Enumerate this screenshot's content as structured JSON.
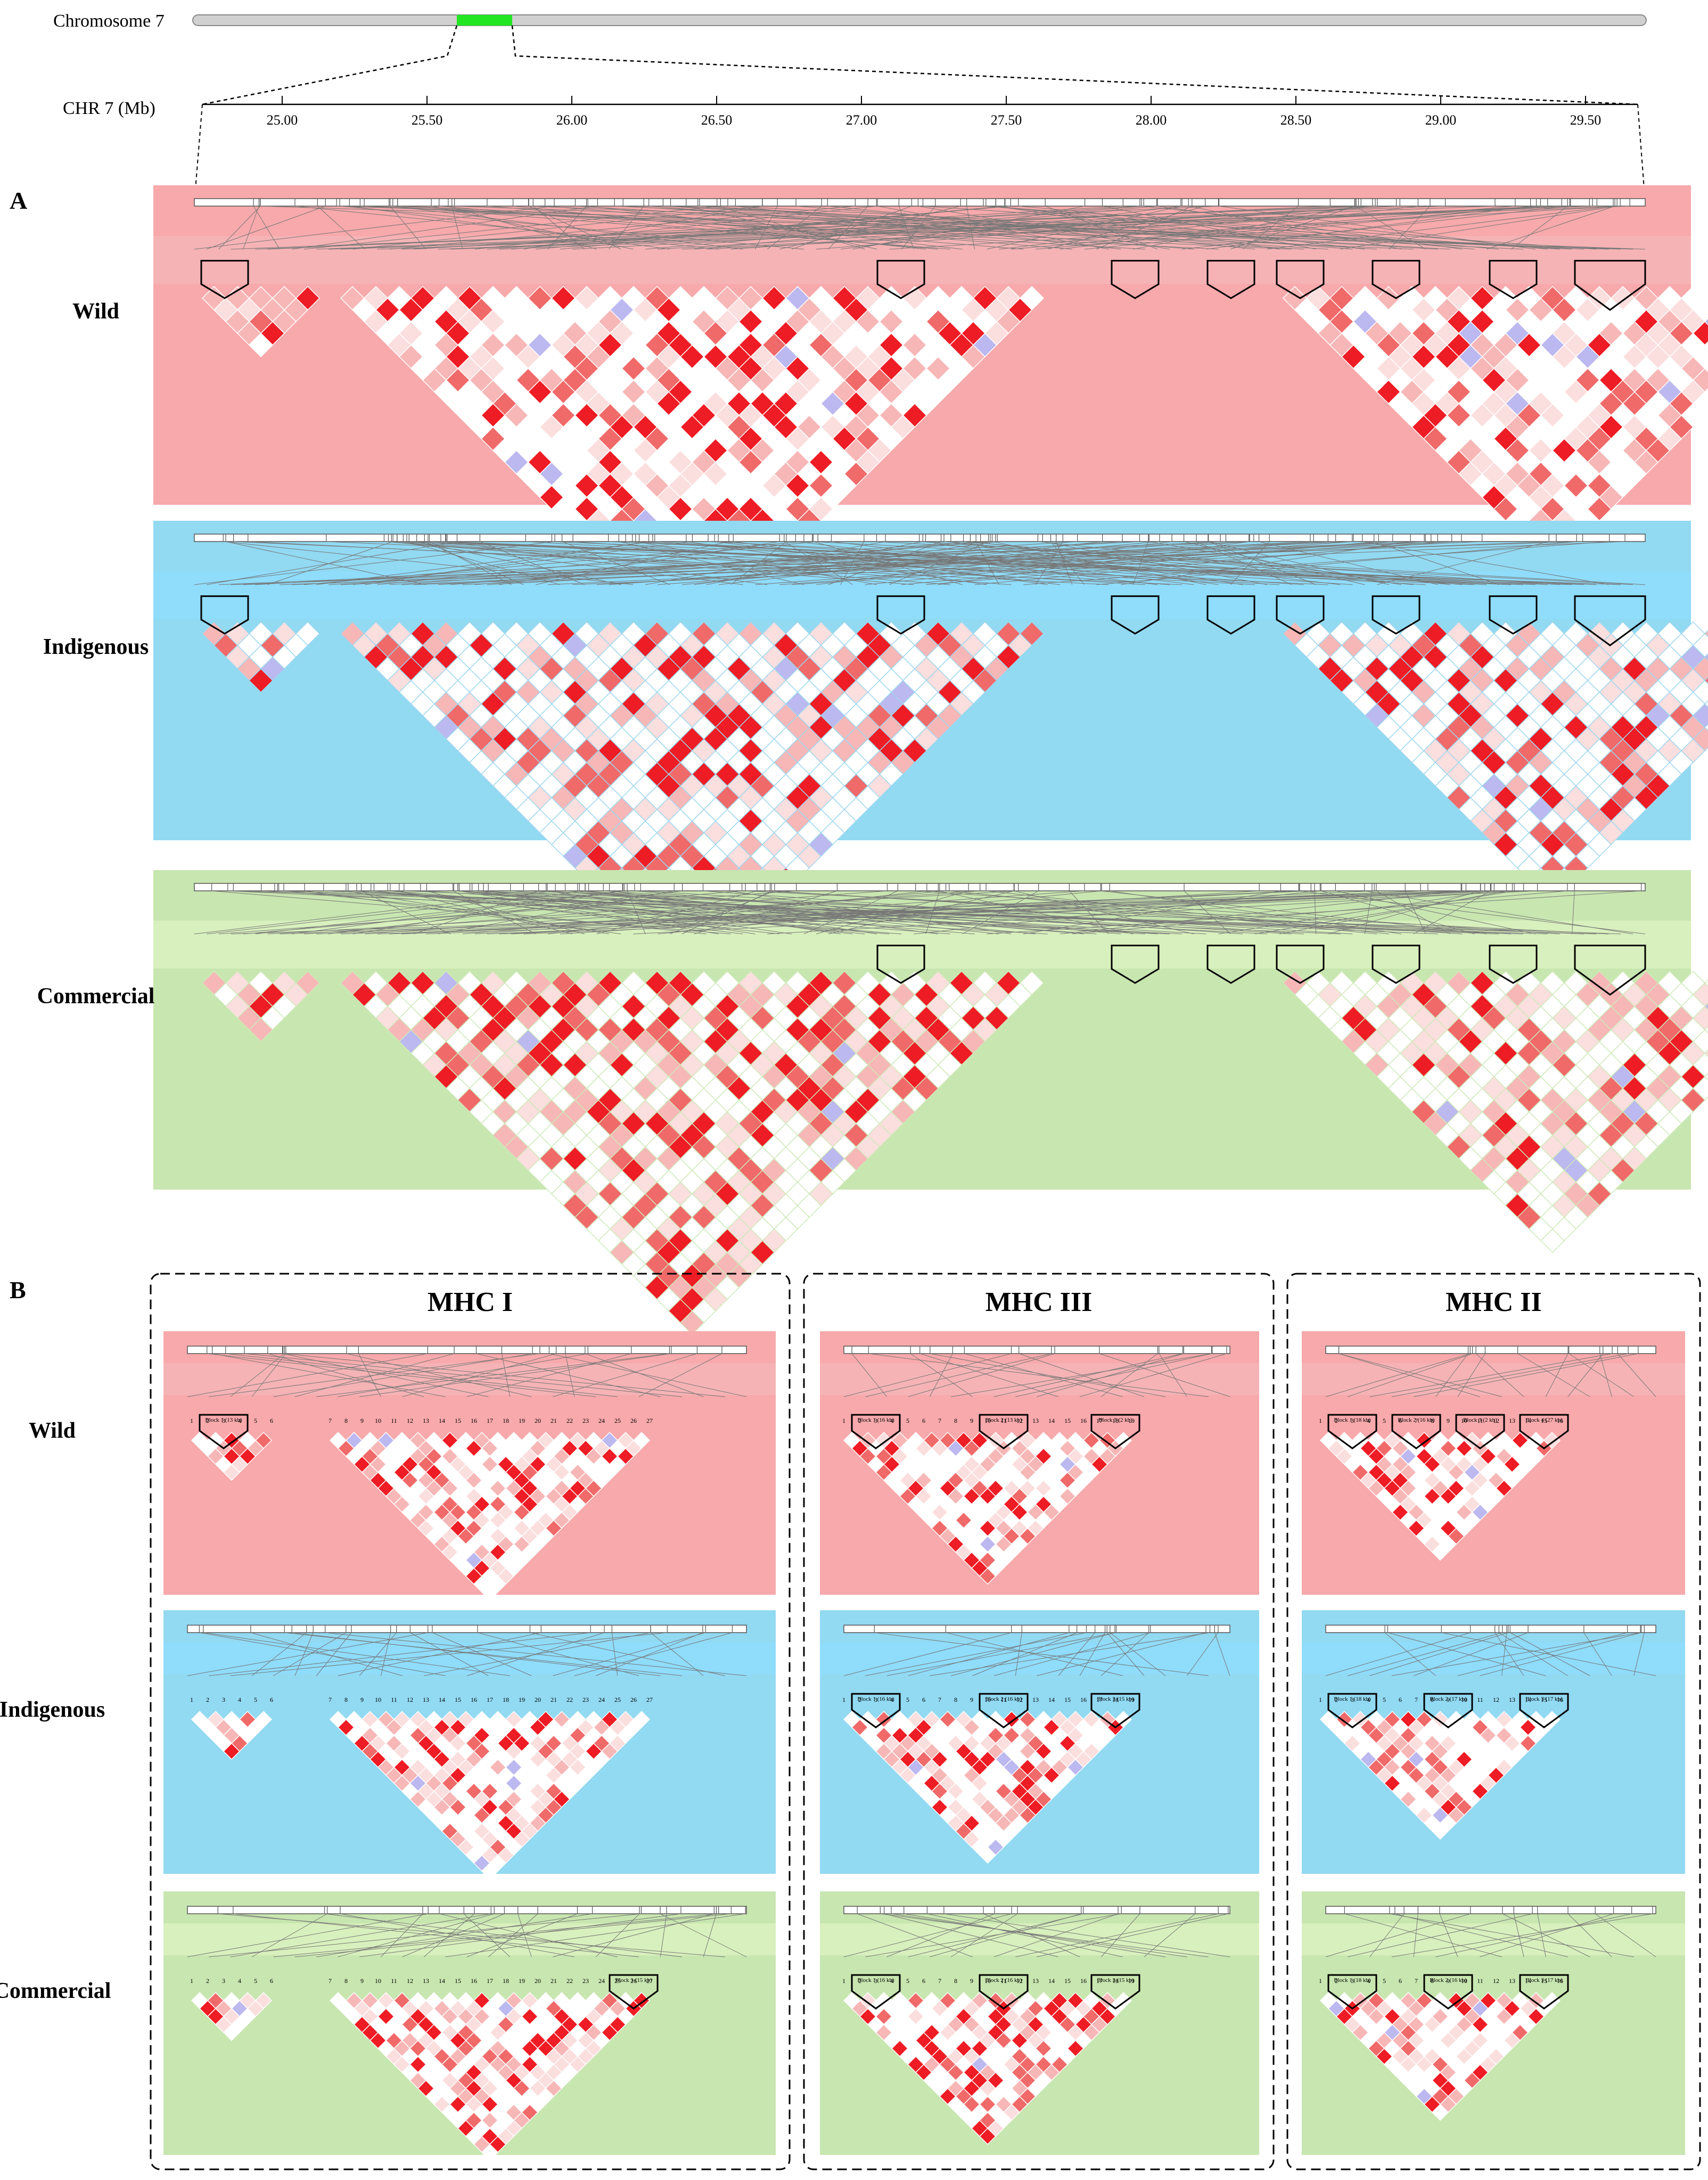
{
  "chromosome": {
    "label": "Chromosome 7",
    "highlight_color": "#22e622",
    "bar_color": "#d0d0d0"
  },
  "axis": {
    "label": "CHR 7 (Mb)",
    "ticks": [
      "25.00",
      "25.50",
      "26.00",
      "26.50",
      "27.00",
      "27.50",
      "28.00",
      "28.50",
      "29.00",
      "29.50"
    ]
  },
  "panel_a": {
    "letter": "A",
    "populations": [
      {
        "name": "Wild",
        "bg": "#f7a9ab",
        "band": "#f5b3b5",
        "grid": "#ffffff"
      },
      {
        "name": "Indigenous",
        "bg": "#92d9f2",
        "band": "#8fdcfb",
        "grid": "#9fd7ee"
      },
      {
        "name": "Commercial",
        "bg": "#c8e6b0",
        "band": "#d8f0bd",
        "grid": "#cfe9b9"
      }
    ]
  },
  "panel_b": {
    "letter": "B",
    "regions": [
      {
        "title": "MHC I",
        "markers": [
          "1",
          "2",
          "3",
          "4",
          "5",
          "6",
          "7",
          "8",
          "9",
          "10",
          "11",
          "12",
          "13",
          "14",
          "15",
          "16",
          "17",
          "18",
          "19",
          "20",
          "21",
          "22",
          "23",
          "24",
          "25",
          "26",
          "27"
        ]
      },
      {
        "title": "MHC III",
        "markers": [
          "1",
          "2",
          "3",
          "4",
          "5",
          "6",
          "7",
          "8",
          "9",
          "10",
          "11",
          "12",
          "13",
          "14",
          "15",
          "16",
          "17",
          "18",
          "19"
        ]
      },
      {
        "title": "MHC II",
        "markers": [
          "1",
          "2",
          "3",
          "4",
          "5",
          "6",
          "7",
          "8",
          "9",
          "10",
          "11",
          "12",
          "13",
          "14",
          "15",
          "16"
        ]
      }
    ],
    "populations": [
      "Wild",
      "Indigenous",
      "Commercial"
    ],
    "blocks": {
      "wild": [
        [
          "Block 1 (13 kb)"
        ],
        [
          "Block 1 (16 kb)",
          "Block 2 (13 kb)",
          "Block 3 (2 kb)"
        ],
        [
          "Block 1 (18 kb)",
          "Block 2 (16 kb)",
          "Block 3 (2 kb)",
          "Block 4 (27 kb)"
        ]
      ],
      "indigenous": [
        [],
        [
          "Block 1 (16 kb)",
          "Block 2 (16 kb)",
          "Block 3 (15 kb)"
        ],
        [
          "Block 1 (18 kb)",
          "Block 2 (17 kb)",
          "Block 3 (17 kb)"
        ]
      ],
      "commercial": [
        [
          "Block 1 (15 kb)"
        ],
        [
          "Block 1 (16 kb)",
          "Block 2 (16 kb)",
          "Block 3 (15 kb)"
        ],
        [
          "Block 1 (18 kb)",
          "Block 2 (16 kb)",
          "Block 3 (17 kb)"
        ]
      ]
    }
  },
  "ld_colors": {
    "strong": "#ee1c24",
    "medium": "#f06a6a",
    "weak": "#f7b7b7",
    "faint": "#fbdede",
    "none": "#ffffff",
    "uninformative": "#bcb8f0"
  }
}
